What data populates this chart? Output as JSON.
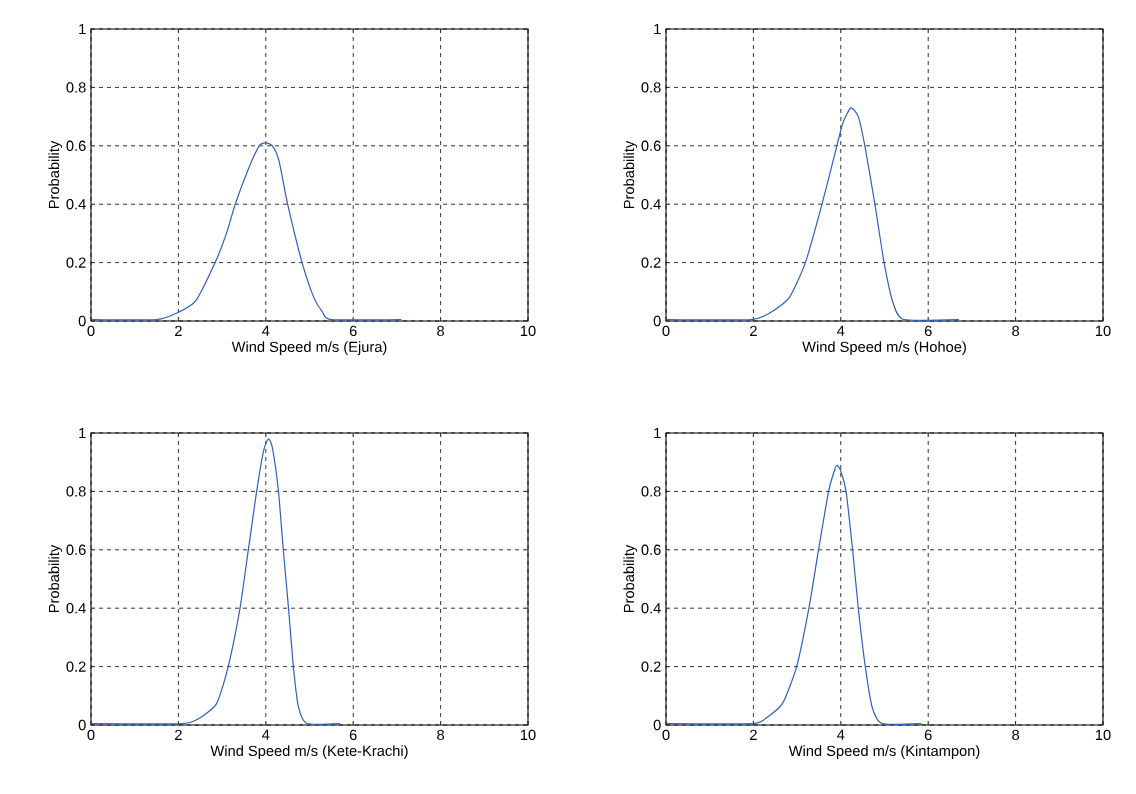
{
  "chart_data": [
    {
      "type": "line",
      "xlabel": "Wind Speed m/s (Ejura)",
      "ylabel": "Probability",
      "color": "#2f5fbf",
      "marker": "none",
      "line_style": "solid",
      "grid": true,
      "xlim": [
        0,
        10
      ],
      "ylim": [
        0,
        1
      ],
      "xticks": [
        0,
        2,
        4,
        6,
        8,
        10
      ],
      "yticks": [
        0,
        0.2,
        0.4,
        0.6,
        0.8,
        1
      ],
      "x": [
        0,
        1.5,
        2,
        2.4,
        2.84,
        3.1,
        3.3,
        3.6,
        3.85,
        4,
        4.15,
        4.3,
        4.5,
        4.83,
        5.1,
        5.3,
        5.5,
        7.1
      ],
      "values": [
        0.005,
        0.005,
        0.03,
        0.07,
        0.2,
        0.3,
        0.4,
        0.52,
        0.6,
        0.61,
        0.6,
        0.55,
        0.4,
        0.2,
        0.08,
        0.03,
        0.005,
        0.005
      ]
    },
    {
      "type": "line",
      "xlabel": "Wind Speed m/s (Hohoe)",
      "ylabel": "Probability",
      "color": "#2f5fbf",
      "marker": "none",
      "line_style": "solid",
      "grid": true,
      "xlim": [
        0,
        10
      ],
      "ylim": [
        0,
        1
      ],
      "xticks": [
        0,
        2,
        4,
        6,
        8,
        10
      ],
      "yticks": [
        0,
        0.2,
        0.4,
        0.6,
        0.8,
        1
      ],
      "x": [
        0,
        1.95,
        2.4,
        2.82,
        3.19,
        3.57,
        3.91,
        4.05,
        4.23,
        4.4,
        4.55,
        4.78,
        4.99,
        5.2,
        5.44,
        6.7
      ],
      "values": [
        0.005,
        0.005,
        0.03,
        0.08,
        0.2,
        0.4,
        0.6,
        0.68,
        0.73,
        0.7,
        0.6,
        0.4,
        0.2,
        0.06,
        0.005,
        0.005
      ]
    },
    {
      "type": "line",
      "xlabel": "Wind Speed m/s (Kete-Krachi)",
      "ylabel": "Probability",
      "color": "#2f5fbf",
      "marker": "none",
      "line_style": "solid",
      "grid": true,
      "xlim": [
        0,
        10
      ],
      "ylim": [
        0,
        1
      ],
      "xticks": [
        0,
        2,
        4,
        6,
        8,
        10
      ],
      "yticks": [
        0,
        0.2,
        0.4,
        0.6,
        0.8,
        1
      ],
      "x": [
        0,
        2.1,
        2.5,
        2.88,
        3.14,
        3.41,
        3.6,
        3.79,
        3.95,
        4.06,
        4.15,
        4.29,
        4.4,
        4.52,
        4.63,
        4.75,
        4.94,
        5.7
      ],
      "values": [
        0.005,
        0.005,
        0.025,
        0.075,
        0.2,
        0.4,
        0.6,
        0.8,
        0.94,
        0.98,
        0.95,
        0.8,
        0.6,
        0.4,
        0.2,
        0.06,
        0.005,
        0.005
      ]
    },
    {
      "type": "line",
      "xlabel": "Wind Speed m/s (Kintampon)",
      "ylabel": "Probability",
      "color": "#2f5fbf",
      "marker": "none",
      "line_style": "solid",
      "grid": true,
      "xlim": [
        0,
        10
      ],
      "ylim": [
        0,
        1
      ],
      "xticks": [
        0,
        2,
        4,
        6,
        8,
        10
      ],
      "yticks": [
        0,
        0.2,
        0.4,
        0.6,
        0.8,
        1
      ],
      "x": [
        0,
        1.99,
        2.3,
        2.67,
        2.99,
        3.27,
        3.49,
        3.72,
        3.85,
        3.91,
        4,
        4.12,
        4.27,
        4.4,
        4.56,
        4.72,
        4.94,
        5.85
      ],
      "values": [
        0.005,
        0.005,
        0.025,
        0.075,
        0.2,
        0.4,
        0.6,
        0.8,
        0.87,
        0.89,
        0.87,
        0.8,
        0.6,
        0.4,
        0.2,
        0.06,
        0.005,
        0.005
      ]
    }
  ]
}
